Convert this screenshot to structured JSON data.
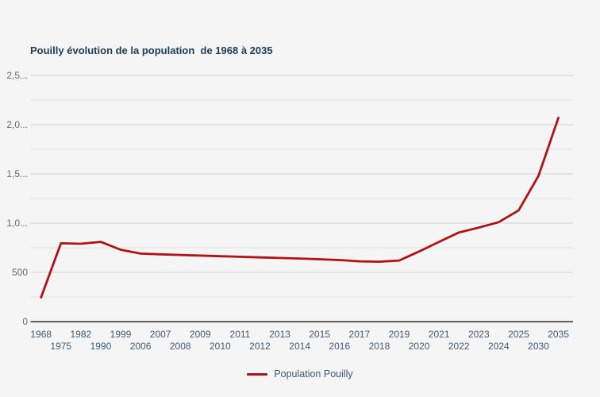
{
  "page": {
    "background": "#f5f5f5"
  },
  "chart_data": {
    "type": "line",
    "title": "Pouilly évolution de la population  de 1968 à 2035",
    "legend": "Population Pouilly",
    "legend_position": "bottom-center",
    "grid": true,
    "categories": [
      "1968",
      "1975",
      "1982",
      "1990",
      "1999",
      "2006",
      "2007",
      "2008",
      "2009",
      "2010",
      "2011",
      "2012",
      "2013",
      "2014",
      "2015",
      "2016",
      "2017",
      "2018",
      "2019",
      "2020",
      "2021",
      "2022",
      "2023",
      "2024",
      "2025",
      "2030",
      "2035"
    ],
    "series": [
      {
        "name": "Population Pouilly",
        "color": "#b01216",
        "values": [
          245,
          795,
          790,
          810,
          730,
          690,
          683,
          677,
          670,
          664,
          658,
          652,
          646,
          640,
          633,
          625,
          612,
          608,
          620,
          712,
          810,
          905,
          955,
          1010,
          1130,
          1480,
          2070
        ]
      }
    ],
    "ylim": [
      0,
      2500
    ],
    "y_minor_interval": 250,
    "y_major_ticks": [
      {
        "value": 0,
        "label": "0"
      },
      {
        "value": 500,
        "label": "500"
      },
      {
        "value": 1000,
        "label": "1,0..."
      },
      {
        "value": 1500,
        "label": "1,5..."
      },
      {
        "value": 2000,
        "label": "2,0..."
      },
      {
        "value": 2500,
        "label": "2,5..."
      }
    ],
    "colors": {
      "background": "#f5f5f5",
      "title": "#1d3c55",
      "x_labels": "#3f5a75",
      "y_labels": "#6a6a6a",
      "grid_major": "#d4d4d4",
      "grid_minor": "#e3e3e3",
      "axis": "#2b2b2b",
      "line": "#b01216",
      "legend_text": "#3f5a75"
    }
  }
}
